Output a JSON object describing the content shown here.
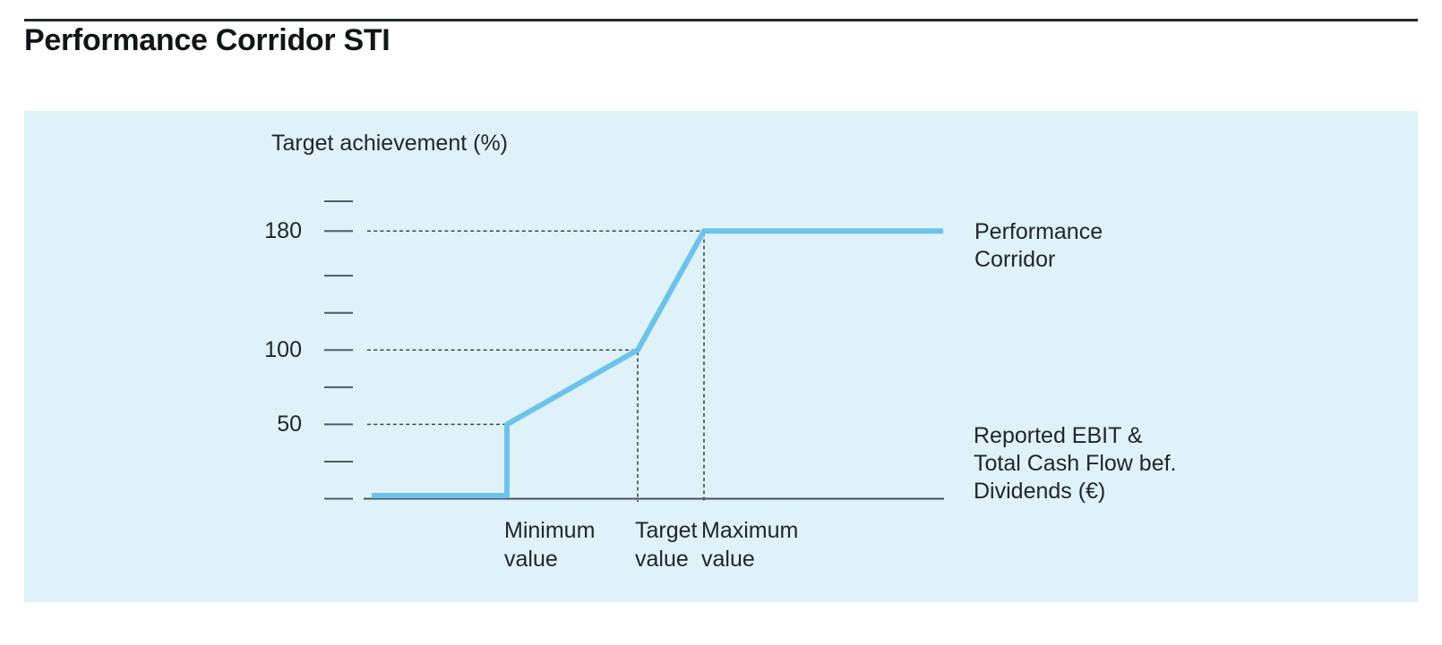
{
  "page": {
    "title": "Performance Corridor STI"
  },
  "chart_data": {
    "type": "line",
    "title": "Performance Corridor STI",
    "ylabel": "Target achievement (%)",
    "xlabel": "Reported EBIT & Total Cash Flow bef. Dividends (€)",
    "xlabel_lines": [
      "Reported EBIT &",
      "Total Cash Flow bef.",
      "Dividends (€)"
    ],
    "ylim": [
      0,
      210
    ],
    "yticks": [
      0,
      25,
      50,
      75,
      100,
      125,
      150,
      180,
      200
    ],
    "ytick_labels": [
      {
        "value": 180
      },
      {
        "value": 100
      },
      {
        "value": 50
      }
    ],
    "x_categories": [
      {
        "key": "min",
        "label": "Minimum value",
        "label_lines": [
          "Minimum",
          "value"
        ]
      },
      {
        "key": "target",
        "label": "Target value",
        "label_lines": [
          "Target",
          "value"
        ]
      },
      {
        "key": "max",
        "label": "Maximum value",
        "label_lines": [
          "Maximum",
          "value"
        ]
      }
    ],
    "series": [
      {
        "name": "Performance Corridor",
        "name_lines": [
          "Performance",
          "Corridor"
        ],
        "color": "#6cc3e9",
        "points": [
          {
            "x": "origin",
            "y": 0
          },
          {
            "x": "min",
            "y": 0
          },
          {
            "x": "min",
            "y": 50
          },
          {
            "x": "target",
            "y": 100
          },
          {
            "x": "max",
            "y": 180
          },
          {
            "x": "end",
            "y": 180
          }
        ]
      }
    ],
    "guides": {
      "horizontal": [
        {
          "y": 180,
          "to_x": "max"
        },
        {
          "y": 100,
          "to_x": "target"
        },
        {
          "y": 50,
          "to_x": "min"
        }
      ],
      "vertical": [
        {
          "x": "target",
          "from_y": 100
        },
        {
          "x": "max",
          "from_y": 180
        }
      ]
    },
    "grid": false,
    "legend_position": "right"
  },
  "colors": {
    "panel_background": "#dff1f9",
    "line": "#6cc3e9",
    "guide": "#3e4a51",
    "axis": "#49545b",
    "text": "#20272c"
  }
}
